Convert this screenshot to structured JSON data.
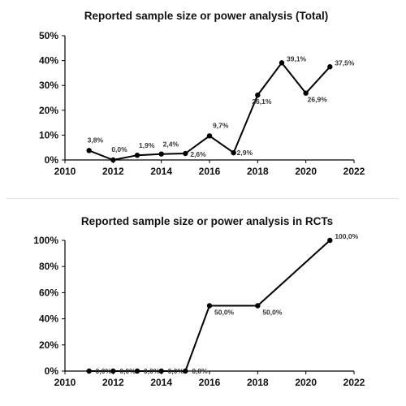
{
  "chart_data": [
    {
      "type": "line",
      "title": "Reported sample size or power analysis (Total)",
      "xlabel": "",
      "ylabel": "",
      "xlim": [
        2010,
        2022
      ],
      "ylim": [
        0,
        50
      ],
      "x_ticks": [
        2010,
        2012,
        2014,
        2016,
        2018,
        2020,
        2022
      ],
      "y_ticks": [
        0,
        10,
        20,
        30,
        40,
        50
      ],
      "y_tick_labels": [
        "0%",
        "10%",
        "20%",
        "30%",
        "40%",
        "50%"
      ],
      "grid": false,
      "legend": "none",
      "x": [
        2011,
        2012,
        2013,
        2014,
        2015,
        2016,
        2017,
        2018,
        2019,
        2020,
        2021
      ],
      "values": [
        3.8,
        0.0,
        1.9,
        2.4,
        2.6,
        9.7,
        2.9,
        26.1,
        39.1,
        26.9,
        37.5
      ],
      "data_labels": [
        "3,8%",
        "0,0%",
        "1,9%",
        "2,4%",
        "2,6%",
        "9,7%",
        "2,9%",
        "26,1%",
        "39,1%",
        "26,9%",
        "37,5%"
      ],
      "color": "#000000"
    },
    {
      "type": "line",
      "title": "Reported sample size or power analysis in RCTs",
      "xlabel": "",
      "ylabel": "",
      "xlim": [
        2010,
        2022
      ],
      "ylim": [
        0,
        100
      ],
      "x_ticks": [
        2010,
        2012,
        2014,
        2016,
        2018,
        2020,
        2022
      ],
      "y_ticks": [
        0,
        20,
        40,
        60,
        80,
        100
      ],
      "y_tick_labels": [
        "0%",
        "20%",
        "40%",
        "60%",
        "80%",
        "100%"
      ],
      "grid": false,
      "legend": "none",
      "x": [
        2011,
        2012,
        2013,
        2014,
        2015,
        2016,
        2018,
        2021
      ],
      "values": [
        0.0,
        0.0,
        0.0,
        0.0,
        0.0,
        50.0,
        50.0,
        100.0
      ],
      "data_labels": [
        "0,0%",
        "0,0%",
        "0,0%",
        "0,0%",
        "0,0%",
        "50,0%",
        "50,0%",
        "100,0%"
      ],
      "color": "#000000"
    }
  ]
}
